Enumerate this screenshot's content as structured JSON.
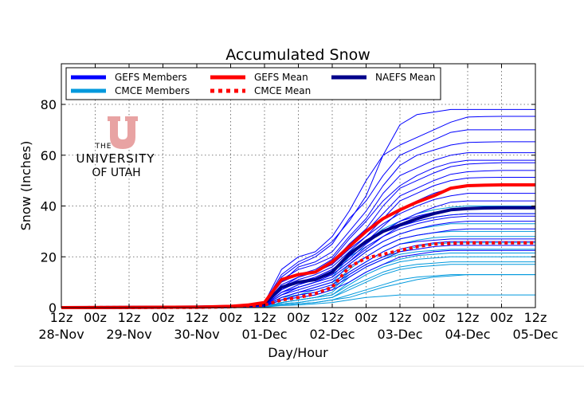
{
  "chart_data": {
    "type": "line",
    "title": "Accumulated Snow",
    "xlabel": "Day/Hour",
    "ylabel": "Snow (Inches)",
    "xlim": [
      0,
      168
    ],
    "ylim": [
      0,
      96
    ],
    "x_tick_hours": [
      0,
      12,
      24,
      36,
      48,
      60,
      72,
      84,
      96,
      108,
      120,
      132,
      144,
      156,
      168
    ],
    "x_tick_labels": [
      "12z",
      "00z",
      "12z",
      "00z",
      "12z",
      "00z",
      "12z",
      "00z",
      "12z",
      "00z",
      "12z",
      "00z",
      "12z",
      "00z",
      "12z"
    ],
    "x_day_labels": [
      {
        "hour": 0,
        "label": "28-Nov"
      },
      {
        "hour": 24,
        "label": "29-Nov"
      },
      {
        "hour": 48,
        "label": "30-Nov"
      },
      {
        "hour": 72,
        "label": "01-Dec"
      },
      {
        "hour": 96,
        "label": "02-Dec"
      },
      {
        "hour": 120,
        "label": "03-Dec"
      },
      {
        "hour": 144,
        "label": "04-Dec"
      },
      {
        "hour": 168,
        "label": "05-Dec"
      }
    ],
    "y_ticks": [
      0,
      20,
      40,
      60,
      80
    ],
    "grid": true,
    "legend": {
      "placement": "top-left",
      "entries": [
        {
          "label": "GEFS Members",
          "key": "gefs_members"
        },
        {
          "label": "GEFS Mean",
          "key": "gefs_mean"
        },
        {
          "label": "NAEFS Mean",
          "key": "naefs_mean"
        },
        {
          "label": "CMCE Members",
          "key": "cmce_members"
        },
        {
          "label": "CMCE Mean",
          "key": "cmce_mean"
        }
      ]
    },
    "styles": {
      "gefs_members": {
        "color": "#0000ff",
        "dash": "solid"
      },
      "cmce_members": {
        "color": "#0099dd",
        "dash": "solid"
      },
      "gefs_mean": {
        "color": "#ff0000",
        "dash": "solid"
      },
      "cmce_mean": {
        "color": "#ff0000",
        "dash": "dotted"
      },
      "naefs_mean": {
        "color": "#00008b",
        "dash": "solid"
      }
    },
    "x_hours": [
      0,
      48,
      60,
      66,
      72,
      78,
      84,
      90,
      96,
      102,
      108,
      114,
      120,
      126,
      132,
      138,
      144,
      150,
      156,
      162,
      168
    ],
    "series": [
      {
        "name": "GEFS Mean",
        "key": "gefs_mean",
        "values": [
          0,
          0.2,
          0.5,
          1,
          2,
          11,
          13,
          14,
          18,
          24,
          30,
          35,
          38.5,
          41.5,
          44,
          47,
          48,
          48.2,
          48.3,
          48.3,
          48.3
        ]
      },
      {
        "name": "CMCE Mean",
        "key": "cmce_mean",
        "values": [
          0,
          0.1,
          0.3,
          0.6,
          1,
          3,
          4,
          5.5,
          8,
          16,
          19.5,
          21,
          22.5,
          24,
          25,
          25.3,
          25.5,
          25.5,
          25.5,
          25.5,
          25.5
        ]
      },
      {
        "name": "NAEFS Mean",
        "key": "naefs_mean",
        "values": [
          0,
          0.2,
          0.4,
          0.8,
          1.5,
          8,
          10,
          11,
          14,
          21,
          26,
          30,
          32.5,
          35,
          37,
          38.5,
          39,
          39.2,
          39.3,
          39.3,
          39.3
        ]
      },
      {
        "name": "GEFS Member",
        "key": "gefs_members",
        "values": [
          0,
          0.2,
          0.5,
          1,
          2,
          13,
          18,
          21,
          26,
          34,
          44,
          60,
          72,
          76,
          77,
          78,
          78,
          78,
          78,
          78,
          78
        ]
      },
      {
        "name": "GEFS Member",
        "key": "gefs_members",
        "values": [
          0,
          0.2,
          0.5,
          1,
          2,
          15,
          20,
          22,
          28,
          38,
          50,
          60,
          64,
          67,
          70,
          73,
          75,
          75.2,
          75.3,
          75.3,
          75.3
        ]
      },
      {
        "name": "GEFS Member",
        "key": "gefs_members",
        "values": [
          0,
          0.2,
          0.4,
          1,
          2,
          12,
          17,
          20,
          25,
          35,
          42,
          52,
          60,
          63,
          66,
          69,
          70,
          70,
          70,
          70,
          70
        ]
      },
      {
        "name": "GEFS Member",
        "key": "gefs_members",
        "values": [
          0,
          0.2,
          0.4,
          0.8,
          2,
          10,
          16,
          18,
          22,
          30,
          38,
          48,
          56,
          60,
          62,
          64,
          65,
          65.2,
          65.3,
          65.3,
          65.3
        ]
      },
      {
        "name": "GEFS Member",
        "key": "gefs_members",
        "values": [
          0,
          0.2,
          0.4,
          0.8,
          1.5,
          11,
          15,
          17,
          20,
          28,
          35,
          45,
          52,
          55,
          58,
          60,
          61,
          61,
          61,
          61,
          61
        ]
      },
      {
        "name": "GEFS Member",
        "key": "gefs_members",
        "values": [
          0,
          0.2,
          0.4,
          0.8,
          1.5,
          10,
          13,
          15,
          19,
          27,
          34,
          42,
          48,
          52,
          55,
          57,
          58,
          58,
          58,
          58,
          58
        ]
      },
      {
        "name": "GEFS Member",
        "key": "gefs_members",
        "values": [
          0,
          0.1,
          0.3,
          0.7,
          1.5,
          9,
          12,
          14,
          18,
          25,
          31,
          40,
          47,
          50,
          53,
          55.5,
          56.5,
          56.8,
          57,
          57,
          57
        ]
      },
      {
        "name": "GEFS Member",
        "key": "gefs_members",
        "values": [
          0,
          0.1,
          0.3,
          0.6,
          1.2,
          8,
          12,
          14,
          17,
          25,
          30,
          37,
          44,
          47,
          50,
          52.5,
          53.5,
          53.8,
          54,
          54,
          54
        ]
      },
      {
        "name": "GEFS Member",
        "key": "gefs_members",
        "values": [
          0,
          0.1,
          0.3,
          0.6,
          1.2,
          8,
          11,
          13,
          16,
          22,
          28,
          35,
          42,
          45,
          48,
          50,
          51,
          51.2,
          51.3,
          51.3,
          51.3
        ]
      },
      {
        "name": "GEFS Member",
        "key": "gefs_members",
        "values": [
          0,
          0.1,
          0.3,
          0.6,
          1,
          7,
          10,
          12,
          15,
          20,
          26,
          32,
          38,
          42,
          45,
          47,
          48,
          48.2,
          48.3,
          48.3,
          48.3
        ]
      },
      {
        "name": "GEFS Member",
        "key": "gefs_members",
        "values": [
          0,
          0.1,
          0.3,
          0.5,
          1,
          9,
          12,
          14,
          17,
          23,
          28,
          33,
          37,
          40,
          42.5,
          44,
          45,
          45,
          45,
          45,
          45
        ]
      },
      {
        "name": "GEFS Member",
        "key": "gefs_members",
        "values": [
          0,
          0.1,
          0.2,
          0.5,
          1,
          6,
          9,
          11,
          14,
          19,
          25,
          30,
          34,
          37,
          39.5,
          41.5,
          42,
          42,
          42,
          42,
          42
        ]
      },
      {
        "name": "GEFS Member",
        "key": "gefs_members",
        "values": [
          0,
          0.1,
          0.2,
          0.5,
          1,
          7,
          10,
          12,
          15,
          20,
          26,
          30,
          34,
          36,
          37.5,
          38.5,
          39,
          39.2,
          39.3,
          39.3,
          39.3
        ]
      },
      {
        "name": "GEFS Member",
        "key": "gefs_members",
        "values": [
          0,
          0.1,
          0.2,
          0.5,
          0.8,
          6,
          9,
          11,
          13,
          18,
          23,
          28,
          32,
          34,
          35.5,
          36.5,
          37,
          37,
          37,
          37,
          37
        ]
      },
      {
        "name": "GEFS Member",
        "key": "gefs_members",
        "values": [
          0,
          0.1,
          0.2,
          0.4,
          0.8,
          6,
          8,
          10,
          13,
          18,
          24,
          28,
          31,
          33,
          34.5,
          35.5,
          36,
          36,
          36,
          36,
          36
        ]
      },
      {
        "name": "GEFS Member",
        "key": "gefs_members",
        "values": [
          0,
          0.1,
          0.2,
          0.4,
          0.8,
          5,
          8,
          10,
          12,
          17,
          22,
          26,
          29,
          31,
          32.5,
          33.5,
          34,
          34,
          34,
          34,
          34
        ]
      },
      {
        "name": "GEFS Member",
        "key": "gefs_members",
        "values": [
          0,
          0.1,
          0.2,
          0.4,
          0.8,
          5,
          7,
          9,
          11,
          16,
          20,
          24,
          27,
          28.5,
          29.5,
          30.5,
          31,
          31,
          31,
          31,
          31
        ]
      },
      {
        "name": "GEFS Member",
        "key": "gefs_members",
        "values": [
          0,
          0.1,
          0.2,
          0.4,
          0.7,
          4,
          6,
          8,
          10,
          14,
          18,
          22,
          25,
          26,
          26.5,
          27,
          27,
          27,
          27,
          27,
          27
        ]
      },
      {
        "name": "GEFS Member",
        "key": "gefs_members",
        "values": [
          0,
          0.1,
          0.2,
          0.3,
          0.6,
          4,
          6,
          7,
          9,
          13,
          17,
          20,
          23,
          24.5,
          25.5,
          26,
          26,
          26,
          26,
          26,
          26
        ]
      },
      {
        "name": "GEFS Member",
        "key": "gefs_members",
        "values": [
          0,
          0.1,
          0.2,
          0.3,
          0.6,
          3,
          5,
          6,
          8,
          12,
          16,
          19,
          22,
          23,
          24,
          24.5,
          24.5,
          24.5,
          24.5,
          24.5,
          24.5
        ]
      },
      {
        "name": "GEFS Member",
        "key": "gefs_members",
        "values": [
          0,
          0.1,
          0.2,
          0.3,
          0.5,
          3,
          4,
          5,
          7,
          10,
          14,
          17,
          20,
          21,
          22,
          22.5,
          22.5,
          22.5,
          22.5,
          22.5,
          22.5
        ]
      },
      {
        "name": "CMCE Member",
        "key": "cmce_members",
        "values": [
          0,
          0.1,
          0.2,
          0.4,
          0.8,
          6,
          9,
          11,
          14,
          22,
          26,
          31,
          34,
          37,
          38.5,
          39.5,
          40,
          40,
          40,
          40,
          40
        ]
      },
      {
        "name": "CMCE Member",
        "key": "cmce_members",
        "values": [
          0,
          0.1,
          0.2,
          0.4,
          0.7,
          5,
          8,
          10,
          12,
          20,
          24,
          28,
          32,
          34,
          35.5,
          36.5,
          37,
          37,
          37,
          37,
          37
        ]
      },
      {
        "name": "CMCE Member",
        "key": "cmce_members",
        "values": [
          0,
          0.1,
          0.2,
          0.3,
          0.6,
          4,
          6,
          8,
          10,
          17,
          22,
          26,
          29,
          31,
          32,
          33,
          33,
          33,
          33,
          33,
          33
        ]
      },
      {
        "name": "CMCE Member",
        "key": "cmce_members",
        "values": [
          0,
          0.1,
          0.2,
          0.3,
          0.5,
          4,
          5,
          7,
          9,
          15,
          20,
          24,
          27,
          28.5,
          29.5,
          30,
          30,
          30,
          30,
          30,
          30
        ]
      },
      {
        "name": "CMCE Member",
        "key": "cmce_members",
        "values": [
          0,
          0.1,
          0.2,
          0.3,
          0.5,
          3,
          5,
          6,
          8,
          14,
          18,
          22,
          25,
          26.5,
          27.5,
          28,
          28,
          28,
          28,
          28,
          28
        ]
      },
      {
        "name": "CMCE Member",
        "key": "cmce_members",
        "values": [
          0,
          0.1,
          0.1,
          0.3,
          0.5,
          3,
          4,
          5,
          7,
          13,
          17,
          20,
          22,
          24,
          25,
          25.5,
          25.5,
          25.5,
          25.5,
          25.5,
          25.5
        ]
      },
      {
        "name": "CMCE Member",
        "key": "cmce_members",
        "values": [
          0,
          0.1,
          0.1,
          0.2,
          0.4,
          2,
          3,
          4,
          6,
          12,
          16,
          19,
          21,
          22,
          22.5,
          23,
          23,
          23,
          23,
          23,
          23
        ]
      },
      {
        "name": "CMCE Member",
        "key": "cmce_members",
        "values": [
          0,
          0.1,
          0.1,
          0.2,
          0.4,
          2,
          3,
          4,
          5,
          10,
          14,
          17,
          19,
          20.5,
          21,
          21.5,
          21.5,
          21.5,
          21.5,
          21.5,
          21.5
        ]
      },
      {
        "name": "CMCE Member",
        "key": "cmce_members",
        "values": [
          0,
          0.1,
          0.1,
          0.2,
          0.4,
          2,
          3,
          4,
          5,
          9,
          13,
          16,
          18,
          19,
          19.5,
          20,
          20,
          20,
          20,
          20,
          20
        ]
      },
      {
        "name": "CMCE Member",
        "key": "cmce_members",
        "values": [
          0,
          0.1,
          0.1,
          0.2,
          0.3,
          1.5,
          2,
          3,
          4,
          8,
          11,
          14,
          16,
          17,
          17.5,
          18,
          18,
          18,
          18,
          18,
          18
        ]
      },
      {
        "name": "CMCE Member",
        "key": "cmce_members",
        "values": [
          0,
          0.1,
          0.1,
          0.2,
          0.3,
          1.5,
          2,
          3,
          4,
          7,
          10,
          13,
          15,
          16,
          16.5,
          17,
          17,
          17,
          17,
          17,
          17
        ]
      },
      {
        "name": "CMCE Member",
        "key": "cmce_members",
        "values": [
          0,
          0,
          0.1,
          0.1,
          0.3,
          1,
          1.5,
          2,
          3,
          5,
          7,
          9,
          11,
          12,
          12.5,
          13,
          13,
          13,
          13,
          13,
          13
        ]
      },
      {
        "name": "CMCE Member",
        "key": "cmce_members",
        "values": [
          0,
          0,
          0.1,
          0.1,
          0.2,
          1,
          1.5,
          2,
          3,
          4,
          6,
          8,
          9.5,
          11,
          12,
          12.5,
          13,
          13,
          13,
          13,
          13
        ]
      },
      {
        "name": "CMCE Member",
        "key": "cmce_members",
        "values": [
          0,
          0,
          0.1,
          0.1,
          0.2,
          0.8,
          1,
          1.5,
          2,
          3,
          4,
          4.5,
          5,
          5,
          5,
          5,
          5,
          5,
          5,
          5,
          5
        ]
      }
    ],
    "watermark": {
      "logo_letter": "U",
      "lines": [
        "THE",
        "UNIVERSITY",
        "OF UTAH"
      ]
    }
  }
}
